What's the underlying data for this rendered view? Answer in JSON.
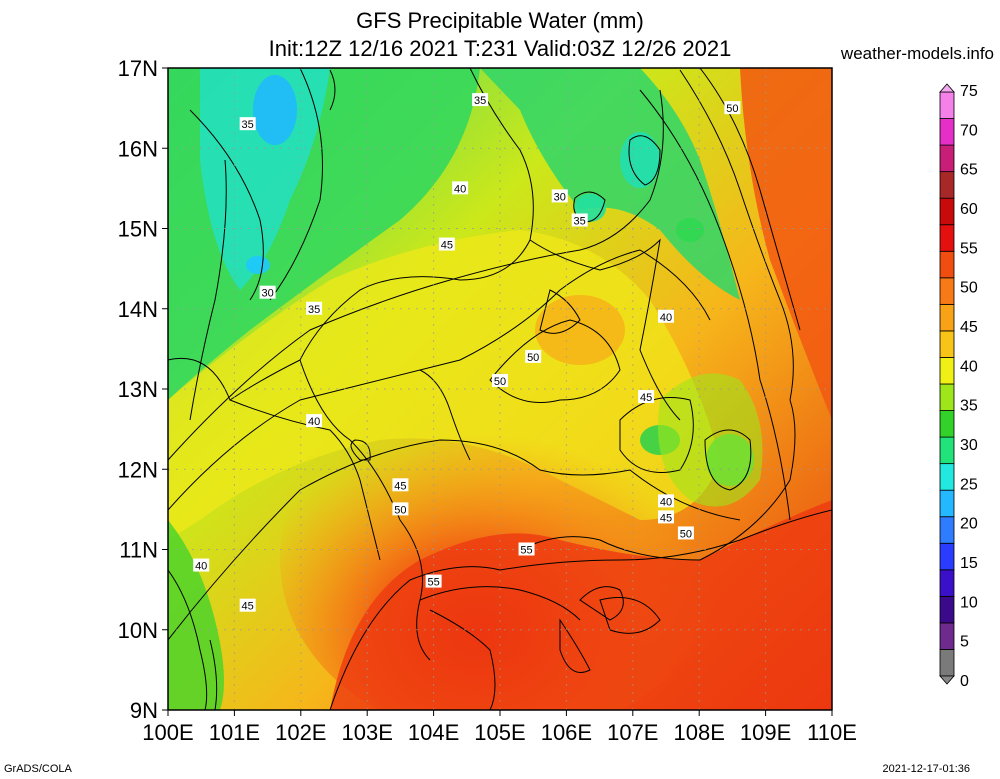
{
  "header": {
    "title_line1": "GFS Precipitable Water (mm)",
    "title_line2": "Init:12Z 12/16 2021 T:231 Valid:03Z 12/26 2021",
    "site": "weather-models.info"
  },
  "footer": {
    "left": "GrADS/COLA",
    "right": "2021-12-17-01:36"
  },
  "axes": {
    "lat_labels": [
      "17N",
      "16N",
      "15N",
      "14N",
      "13N",
      "12N",
      "11N",
      "10N",
      "9N"
    ],
    "lon_labels": [
      "100E",
      "101E",
      "102E",
      "103E",
      "104E",
      "105E",
      "106E",
      "107E",
      "108E",
      "109E",
      "110E"
    ]
  },
  "colorbar": {
    "labels": [
      "75",
      "70",
      "65",
      "60",
      "55",
      "50",
      "45",
      "40",
      "35",
      "30",
      "25",
      "20",
      "15",
      "10",
      "5",
      "0"
    ],
    "colors": [
      "#7a7a7a",
      "#6e2a8c",
      "#3b0a8a",
      "#3a10c8",
      "#2a3cff",
      "#2e7cff",
      "#23b8ff",
      "#22e8e0",
      "#22e27a",
      "#33d22a",
      "#9ee61a",
      "#f0f016",
      "#f8c418",
      "#f8a218",
      "#f87a16",
      "#f04e10",
      "#e41010",
      "#c80a0a",
      "#a82828",
      "#c81e78",
      "#e62ec8",
      "#f480e8"
    ]
  },
  "contours": [
    {
      "label": "35",
      "lon": 101.2,
      "lat": 16.3
    },
    {
      "label": "30",
      "lon": 101.5,
      "lat": 14.2
    },
    {
      "label": "35",
      "lon": 102.2,
      "lat": 14.0
    },
    {
      "label": "40",
      "lon": 102.2,
      "lat": 12.6
    },
    {
      "label": "40",
      "lon": 100.5,
      "lat": 10.8
    },
    {
      "label": "45",
      "lon": 101.2,
      "lat": 10.3
    },
    {
      "label": "45",
      "lon": 103.5,
      "lat": 11.8
    },
    {
      "label": "50",
      "lon": 103.5,
      "lat": 11.5
    },
    {
      "label": "55",
      "lon": 104.0,
      "lat": 10.6
    },
    {
      "label": "55",
      "lon": 105.4,
      "lat": 11.0
    },
    {
      "label": "50",
      "lon": 105.0,
      "lat": 13.1
    },
    {
      "label": "50",
      "lon": 105.5,
      "lat": 13.4
    },
    {
      "label": "45",
      "lon": 104.2,
      "lat": 14.8
    },
    {
      "label": "40",
      "lon": 104.4,
      "lat": 15.5
    },
    {
      "label": "35",
      "lon": 104.7,
      "lat": 16.6
    },
    {
      "label": "30",
      "lon": 105.9,
      "lat": 15.4
    },
    {
      "label": "35",
      "lon": 106.2,
      "lat": 15.1
    },
    {
      "label": "40",
      "lon": 107.5,
      "lat": 13.9
    },
    {
      "label": "45",
      "lon": 107.2,
      "lat": 12.9
    },
    {
      "label": "40",
      "lon": 107.5,
      "lat": 11.6
    },
    {
      "label": "45",
      "lon": 107.5,
      "lat": 11.4
    },
    {
      "label": "50",
      "lon": 107.8,
      "lat": 11.2
    },
    {
      "label": "50",
      "lon": 108.5,
      "lat": 16.5
    }
  ]
}
